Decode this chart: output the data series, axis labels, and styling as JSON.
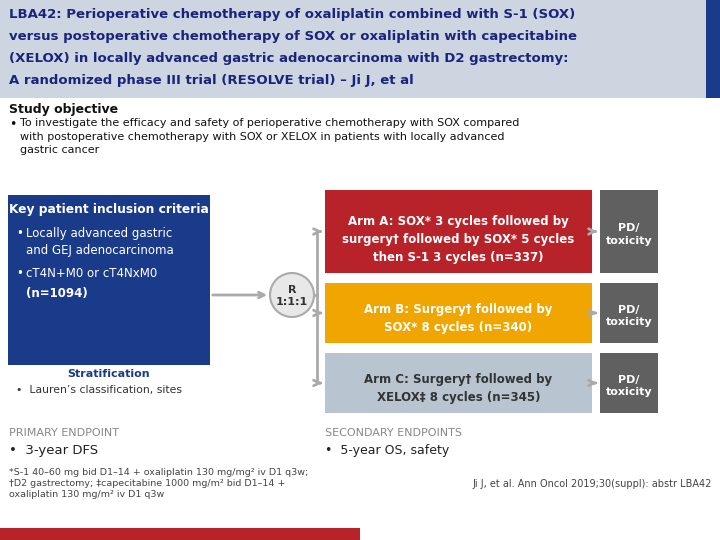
{
  "title_bg_color": "#cdd5e0",
  "title_text_color": "#1a237e",
  "title_line1": "LBA42: Perioperative chemotherapy of oxaliplatin combined with S-1 (SOX)",
  "title_line2": "versus postoperative chemotherapy of SOX or oxaliplatin with capecitabine",
  "title_line3": "(XELOX) in locally advanced gastric adenocarcinoma with D2 gastrectomy:",
  "title_line4": "A randomized phase III trial (RESOLVE trial) – Ji J, et al",
  "title_border_color": "#1a3a8a",
  "body_bg_color": "#ffffff",
  "study_obj_header": "Study objective",
  "study_obj_text": "To investigate the efficacy and safety of perioperative chemotherapy with SOX compared\nwith postoperative chemotherapy with SOX or XELOX in patients with locally advanced\ngastric cancer",
  "key_criteria_bg": "#1a3a8a",
  "key_criteria_text_color": "#ffffff",
  "key_criteria_header": "Key patient inclusion criteria",
  "key_criteria_b1": "Locally advanced gastric\nand GEJ adenocarcinoma",
  "key_criteria_b2": "cT4N+M0 or cT4NxM0",
  "key_criteria_b3": "(n=1094)",
  "strat_header": "Stratification",
  "strat_bullet": "Lauren’s classification, sites",
  "r_bg": "#e8e8e8",
  "r_border": "#aaaaaa",
  "r_text": "R\n1:1:1",
  "arm_a_bg": "#b8232a",
  "arm_a_text_color": "#ffffff",
  "arm_a_text": "Arm A: SOX* 3 cycles followed by\nsurgery† followed by SOX* 5 cycles\nthen S-1 3 cycles (n=337)",
  "arm_b_bg": "#f0a500",
  "arm_b_text_color": "#ffffff",
  "arm_b_text": "Arm B: Surgery† followed by\nSOX* 8 cycles (n=340)",
  "arm_c_bg": "#b8c4d0",
  "arm_c_text_color": "#333333",
  "arm_c_text": "Arm C: Surgery† followed by\nXELOX‡ 8 cycles (n=345)",
  "pd_bg": "#606060",
  "pd_text_color": "#ffffff",
  "pd_text": "PD/\ntoxicity",
  "arrow_color": "#aaaaaa",
  "primary_header": "PRIMARY ENDPOINT",
  "primary_bullet": "3-year DFS",
  "secondary_header": "SECONDARY ENDPOINTS",
  "secondary_bullet": "5-year OS, safety",
  "footnote1": "*S-1 40–60 mg bid D1–14 + oxaliplatin 130 mg/mg² iv D1 q3w;",
  "footnote2": "†D2 gastrectomy; ‡capecitabine 1000 mg/m² bid D1–14 +",
  "footnote3": "oxaliplatin 130 mg/m² iv D1 q3w",
  "citation": "Ji J, et al. Ann Oncol 2019;30(suppl): abstr LBA42",
  "bottom_bar_color": "#b8232a"
}
